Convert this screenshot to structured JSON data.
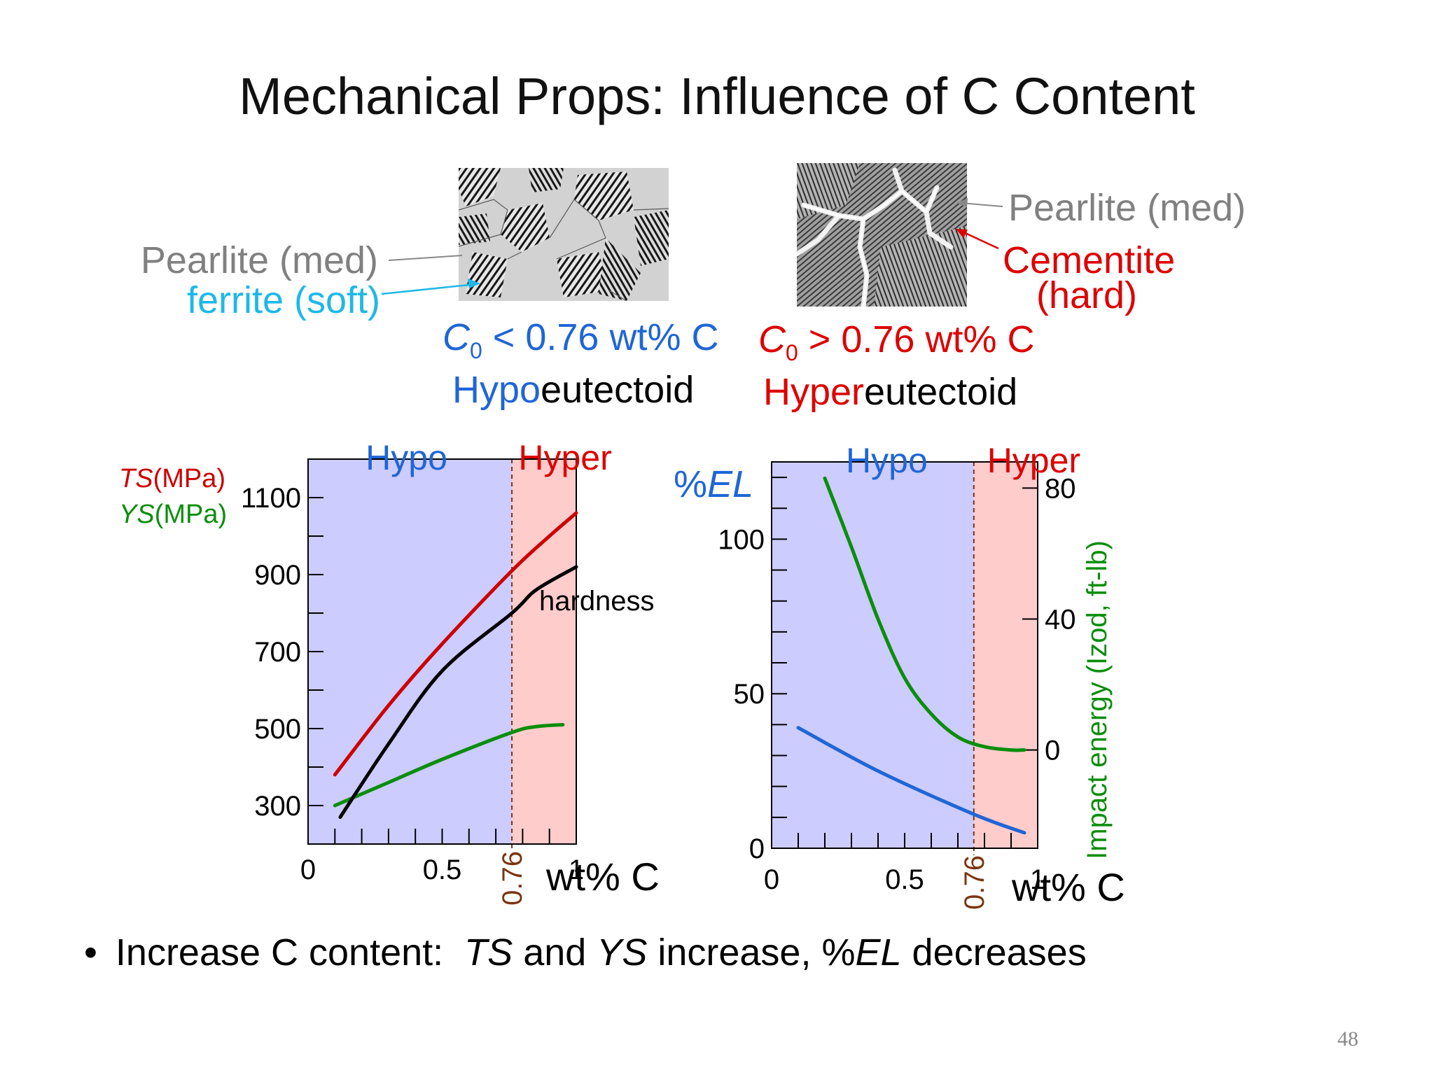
{
  "slide": {
    "title": "Mechanical Props: Influence of C Content",
    "page_number": "48",
    "bullet": {
      "symbol": "•",
      "lead": "Increase C content:  ",
      "ts": "TS",
      "and": " and ",
      "ys": "YS",
      "increase": " increase, %",
      "el": "EL",
      "decreases": " decreases"
    }
  },
  "micrographs": {
    "hypo": {
      "pearlite_label": "Pearlite (med)",
      "ferrite_label": "ferrite (soft)",
      "composition": {
        "c": "C",
        "sub": "0",
        "rest": " < 0.76 wt% C"
      },
      "name_prefix": "Hypo",
      "name_suffix": "eutectoid"
    },
    "hyper": {
      "pearlite_label": "Pearlite (med)",
      "cementite_label_1": "Cementite",
      "cementite_label_2": "(hard)",
      "composition": {
        "c": "C",
        "sub": "0",
        "rest": " > 0.76 wt% C"
      },
      "name_prefix": "Hyper",
      "name_suffix": "eutectoid"
    }
  },
  "colors": {
    "hypo_region": "#ccccff",
    "hyper_region": "#ffcccc",
    "ts": "#cc0000",
    "ys": "#0b8e0b",
    "hardness": "#000000",
    "el": "#1f66d6",
    "impact": "#0b8e0b",
    "hypo_text": "#1f66d6",
    "hyper_text": "#dd0000",
    "eutectoid_line": "#7a3510",
    "ferrite": "#1eb8e8",
    "pearlite": "#808080"
  },
  "chart_data": [
    {
      "type": "line",
      "xlabel": "wt% C",
      "x_ticks": [
        "0",
        "0.5",
        "1"
      ],
      "xlim": [
        0,
        1
      ],
      "ylim": [
        200,
        1200
      ],
      "y_ticks": [
        "300",
        "500",
        "700",
        "900",
        "1100"
      ],
      "ylabel_ts": "TS",
      "ylabel_ys": "YS",
      "ylabel_unit": "(MPa)",
      "region_labels": [
        "Hypo",
        "Hyper"
      ],
      "eutectoid": {
        "x": 0.76,
        "label": "0.76"
      },
      "annotation": "hardness",
      "series": [
        {
          "key": "ts",
          "x": [
            0.1,
            0.3,
            0.5,
            0.76,
            0.9,
            1.0
          ],
          "y": [
            380,
            560,
            720,
            910,
            1000,
            1060
          ]
        },
        {
          "key": "ys",
          "x": [
            0.1,
            0.3,
            0.5,
            0.76,
            0.85,
            0.95
          ],
          "y": [
            300,
            360,
            420,
            490,
            505,
            510
          ]
        },
        {
          "key": "hardness",
          "x": [
            0.12,
            0.3,
            0.5,
            0.76,
            0.85,
            1.0
          ],
          "y": [
            270,
            460,
            650,
            800,
            860,
            920
          ]
        }
      ]
    },
    {
      "type": "line",
      "xlabel": "wt% C",
      "x_ticks": [
        "0",
        "0.5",
        "1"
      ],
      "xlim": [
        0,
        1
      ],
      "ylim": [
        0,
        125
      ],
      "y_ticks": [
        "0",
        "50",
        "100"
      ],
      "ylabel_left": "%EL",
      "ylabel_right": "Impact energy (Izod, ft-lb)",
      "y2lim": [
        -30,
        88
      ],
      "y2_ticks": [
        "0",
        "40",
        "80"
      ],
      "region_labels": [
        "Hypo",
        "Hyper"
      ],
      "eutectoid": {
        "x": 0.76,
        "label": "0.76"
      },
      "series": [
        {
          "key": "el",
          "axis": "left",
          "x": [
            0.1,
            0.4,
            0.76,
            0.95
          ],
          "y": [
            39,
            25,
            11,
            5
          ]
        },
        {
          "key": "impact",
          "axis": "right",
          "x": [
            0.2,
            0.3,
            0.4,
            0.5,
            0.6,
            0.7,
            0.8,
            0.9,
            0.95
          ],
          "y": [
            83,
            62,
            40,
            22,
            11,
            4,
            1,
            0,
            0
          ]
        }
      ]
    }
  ]
}
